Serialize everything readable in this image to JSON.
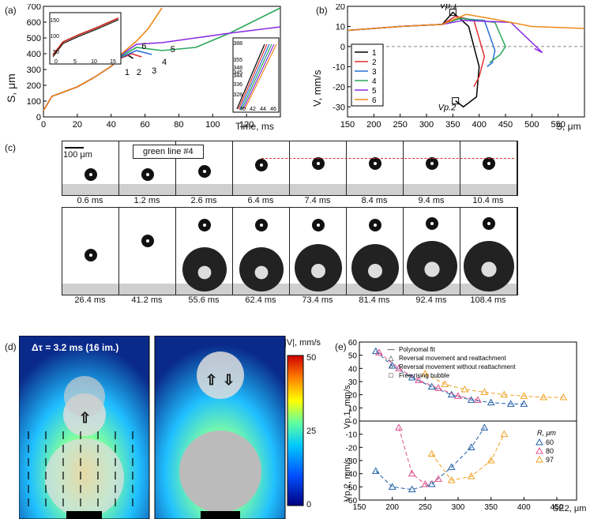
{
  "panels": {
    "a": {
      "label": "(a)",
      "ylabel": "S, μm",
      "xlabel": "Time, ms",
      "curve_labels": [
        "1",
        "2",
        "3",
        "4",
        "5",
        "6"
      ],
      "inset_right_ticks": [
        "388",
        "355",
        "348",
        "345",
        "344",
        "336",
        "328"
      ],
      "inset_right_xticks": [
        "40",
        "42",
        "44",
        "46"
      ],
      "inset_left_yticks": [
        "150",
        "100",
        "50"
      ],
      "inset_left_xticks": [
        "0",
        "5",
        "10",
        "15"
      ]
    },
    "b": {
      "label": "(b)",
      "ylabel": "V, mm/s",
      "xlabel": "S, μm",
      "annot_top": "Vp.1",
      "annot_bottom": "Vp.2",
      "legend": [
        "1",
        "2",
        "3",
        "4",
        "5",
        "6"
      ]
    },
    "c": {
      "label": "(c)",
      "scale_bar": "100 μm",
      "tag": "green line #4",
      "row1_times": [
        "0.6 ms",
        "1.2 ms",
        "2.6 ms",
        "6.4 ms",
        "7.4 ms",
        "8.4 ms",
        "9.4 ms",
        "10.4 ms"
      ],
      "row2_times": [
        "26.4 ms",
        "41.2 ms",
        "55.6 ms",
        "62.4 ms",
        "73.4 ms",
        "81.4 ms",
        "92.4 ms",
        "108.4 ms"
      ]
    },
    "d": {
      "label": "(d)",
      "title": "Δτ = 3.2 ms (16 im.)",
      "colorbar_title": "|V|, mm/s",
      "colorbar_ticks": [
        "50",
        "25",
        "0"
      ]
    },
    "e": {
      "label": "(e)",
      "legend": [
        "Polynomal fit",
        "Reversal movement and reattachment",
        "Reversal movement without reattachment",
        "Free rising bubble"
      ],
      "r_title": "R, μm",
      "r_values": [
        "60",
        "80",
        "97"
      ],
      "ylabel_top": "Vp,1, mm/s",
      "ylabel_bottom": "Vp,2, mm/s",
      "xlabel": "SE2, μm"
    }
  },
  "colors": {
    "c1": "#000000",
    "c2": "#e03030",
    "c3": "#2a6fd6",
    "c4": "#2aa85a",
    "c5": "#8a2be2",
    "c6": "#f08a1a",
    "blue": "#1f5fa8",
    "pink": "#e0508a",
    "orange": "#f0a020"
  },
  "chart_data": [
    {
      "type": "line",
      "title": "(a)",
      "xlabel": "Time, ms",
      "ylabel": "S, μm",
      "xlim": [
        0,
        140
      ],
      "ylim": [
        0,
        700
      ],
      "x_ticks": [
        0,
        20,
        40,
        60,
        80,
        100,
        120
      ],
      "y_ticks": [
        0,
        100,
        200,
        300,
        400,
        500,
        600,
        700
      ],
      "series": [
        {
          "name": "1",
          "x": [
            0,
            5,
            10,
            20,
            30,
            40,
            45,
            50,
            53
          ],
          "y": [
            40,
            130,
            150,
            190,
            250,
            320,
            370,
            390,
            370
          ]
        },
        {
          "name": "2",
          "x": [
            0,
            5,
            10,
            20,
            30,
            40,
            45,
            52,
            58
          ],
          "y": [
            40,
            130,
            150,
            190,
            250,
            320,
            370,
            400,
            380
          ]
        },
        {
          "name": "3",
          "x": [
            0,
            5,
            10,
            20,
            30,
            40,
            45,
            55,
            64
          ],
          "y": [
            40,
            130,
            150,
            190,
            250,
            320,
            375,
            420,
            395
          ]
        },
        {
          "name": "4",
          "x": [
            0,
            5,
            10,
            20,
            30,
            40,
            45,
            55,
            70,
            90,
            110,
            140
          ],
          "y": [
            40,
            130,
            150,
            190,
            250,
            320,
            380,
            440,
            420,
            440,
            530,
            690
          ]
        },
        {
          "name": "5",
          "x": [
            0,
            5,
            10,
            20,
            30,
            40,
            45,
            55,
            70,
            90,
            110,
            140
          ],
          "y": [
            40,
            130,
            150,
            190,
            250,
            320,
            385,
            460,
            470,
            500,
            530,
            570
          ]
        },
        {
          "name": "6",
          "x": [
            0,
            5,
            10,
            20,
            30,
            40,
            45,
            55,
            62,
            70
          ],
          "y": [
            40,
            130,
            150,
            190,
            250,
            320,
            390,
            480,
            560,
            690
          ]
        }
      ]
    },
    {
      "type": "line",
      "title": "(b)",
      "xlabel": "S, μm",
      "ylabel": "V, mm/s",
      "xlim": [
        150,
        600
      ],
      "ylim": [
        -35,
        20
      ],
      "x_ticks": [
        150,
        200,
        250,
        300,
        350,
        400,
        450,
        500,
        550
      ],
      "y_ticks": [
        -30,
        -20,
        -10,
        0,
        10,
        20
      ],
      "series": [
        {
          "name": "1",
          "x": [
            150,
            250,
            330,
            350,
            380,
            400,
            395,
            370,
            355
          ],
          "y": [
            8,
            10,
            11,
            17,
            10,
            -10,
            -25,
            -30,
            -27
          ]
        },
        {
          "name": "2",
          "x": [
            150,
            250,
            330,
            355,
            390,
            410,
            400,
            390
          ],
          "y": [
            8,
            10,
            11,
            15,
            13,
            -5,
            -15,
            -20
          ]
        },
        {
          "name": "3",
          "x": [
            150,
            250,
            330,
            360,
            410,
            430,
            425,
            415
          ],
          "y": [
            8,
            10,
            11,
            14,
            13,
            -2,
            -8,
            -10
          ]
        },
        {
          "name": "4",
          "x": [
            150,
            250,
            330,
            365,
            430,
            450,
            440,
            420
          ],
          "y": [
            8,
            10,
            11,
            14,
            12,
            0,
            -4,
            -8
          ]
        },
        {
          "name": "5",
          "x": [
            150,
            250,
            330,
            370,
            460,
            500,
            520,
            505
          ],
          "y": [
            8,
            10,
            11,
            13,
            12,
            2,
            -3,
            -1
          ]
        },
        {
          "name": "6",
          "x": [
            150,
            250,
            330,
            375,
            420,
            500,
            600
          ],
          "y": [
            8,
            10,
            11,
            16,
            14,
            10,
            9
          ]
        }
      ]
    },
    {
      "type": "scatter",
      "title": "(e)",
      "xlabel": "SE2, μm",
      "ylabel_top": "Vp,1, mm/s",
      "ylabel_bottom": "Vp,2, mm/s",
      "xlim": [
        150,
        480
      ],
      "x_ticks": [
        150,
        200,
        250,
        300,
        350,
        400,
        450
      ],
      "ylim_top": [
        0,
        60
      ],
      "ylim_bottom": [
        -60,
        0
      ],
      "series": [
        {
          "name": "60",
          "top_x": [
            175,
            200,
            230,
            260,
            290,
            320,
            350,
            380,
            400
          ],
          "top_y": [
            53,
            42,
            33,
            26,
            20,
            16,
            14,
            13,
            13
          ],
          "bot_x": [
            175,
            200,
            230,
            260,
            290,
            320,
            340
          ],
          "bot_y": [
            -38,
            -50,
            -52,
            -48,
            -35,
            -20,
            -5
          ]
        },
        {
          "name": "80",
          "top_x": [
            180,
            210,
            240,
            270,
            300,
            330
          ],
          "top_y": [
            52,
            40,
            31,
            25,
            19,
            16
          ],
          "bot_x": [
            210,
            230,
            250,
            270
          ],
          "bot_y": [
            -5,
            -40,
            -48,
            -44
          ]
        },
        {
          "name": "97",
          "top_x": [
            250,
            280,
            310,
            340,
            370,
            400,
            430,
            460
          ],
          "top_y": [
            36,
            28,
            24,
            22,
            20,
            19,
            18,
            18
          ],
          "bot_x": [
            260,
            290,
            320,
            350,
            370
          ],
          "bot_y": [
            -25,
            -45,
            -42,
            -30,
            -10
          ]
        }
      ]
    }
  ]
}
